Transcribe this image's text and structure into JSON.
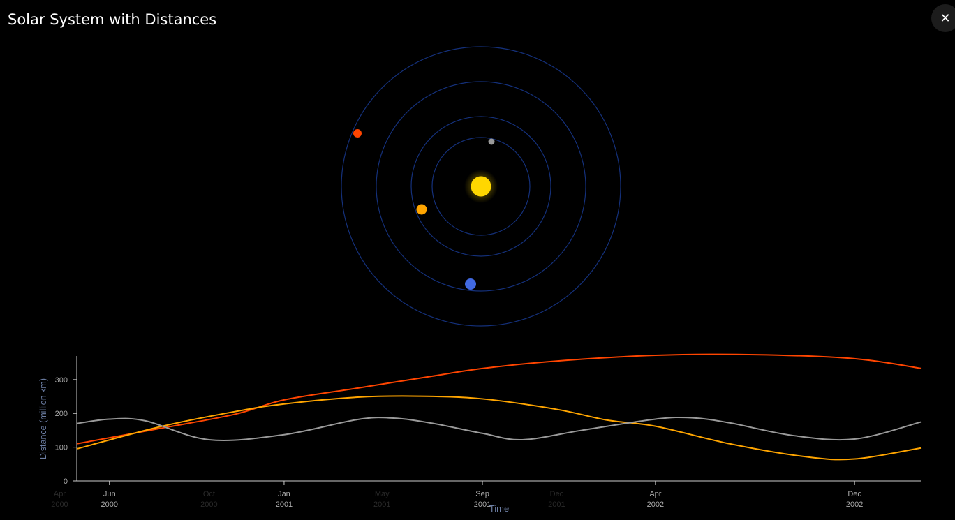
{
  "header": {
    "title": "Solar System with Distances",
    "close_label": "✕"
  },
  "colors": {
    "background": "#000000",
    "orbit": "#14307a",
    "sun": "#ffd700",
    "mercury": "#9a9a9a",
    "venus": "#ffa500",
    "earth": "#4169e1",
    "mars": "#ff4500",
    "axis": "#cccccc",
    "tick_text": "#aaaaaa",
    "faded_tick_text": "#2a2a2a"
  },
  "orrery": {
    "bodies": [
      {
        "name": "Sun",
        "color": "#ffd700"
      },
      {
        "name": "Mercury",
        "color": "#9a9a9a"
      },
      {
        "name": "Venus",
        "color": "#ffa500"
      },
      {
        "name": "Earth",
        "color": "#4169e1"
      },
      {
        "name": "Mars",
        "color": "#ff4500"
      }
    ]
  },
  "chart_data": {
    "type": "line",
    "xlabel": "Time",
    "ylabel": "Distance (million km)",
    "ylim": [
      0,
      370
    ],
    "yticks": [
      0,
      100,
      200,
      300
    ],
    "xlim": [
      "2000-04-22",
      "2003-02-21"
    ],
    "xticks": [
      {
        "date": "2000-06-01",
        "month": "Jun",
        "year": "2000"
      },
      {
        "date": "2001-01-01",
        "month": "Jan",
        "year": "2001"
      },
      {
        "date": "2001-09-01",
        "month": "Sep",
        "year": "2001"
      },
      {
        "date": "2002-04-01",
        "month": "Apr",
        "year": "2002"
      },
      {
        "date": "2002-12-01",
        "month": "Dec",
        "year": "2002"
      }
    ],
    "faded_xticks": [
      {
        "date": "2000-04-01",
        "month": "Apr",
        "year": "2000"
      },
      {
        "date": "2000-10-01",
        "month": "Oct",
        "year": "2000"
      },
      {
        "date": "2001-05-01",
        "month": "May",
        "year": "2001"
      },
      {
        "date": "2001-12-01",
        "month": "Dec",
        "year": "2001"
      }
    ],
    "grid": false,
    "legend": "none",
    "series": [
      {
        "color": "#ff4500",
        "points": [
          [
            "2000-04-22",
            110
          ],
          [
            "2000-08-01",
            155
          ],
          [
            "2000-11-01",
            197
          ],
          [
            "2001-01-01",
            240
          ],
          [
            "2001-04-01",
            275
          ],
          [
            "2001-07-01",
            310
          ],
          [
            "2001-09-01",
            333
          ],
          [
            "2001-12-01",
            355
          ],
          [
            "2002-04-01",
            372
          ],
          [
            "2002-08-01",
            374
          ],
          [
            "2002-12-01",
            362
          ],
          [
            "2003-02-21",
            333
          ]
        ]
      },
      {
        "color": "#ffa500",
        "points": [
          [
            "2000-04-22",
            95
          ],
          [
            "2000-08-01",
            160
          ],
          [
            "2000-11-01",
            205
          ],
          [
            "2001-01-01",
            228
          ],
          [
            "2001-04-01",
            248
          ],
          [
            "2001-06-15",
            251
          ],
          [
            "2001-09-01",
            243
          ],
          [
            "2001-12-01",
            212
          ],
          [
            "2002-02-01",
            180
          ],
          [
            "2002-04-01",
            162
          ],
          [
            "2002-07-01",
            110
          ],
          [
            "2002-10-01",
            72
          ],
          [
            "2002-12-01",
            65
          ],
          [
            "2003-02-21",
            98
          ]
        ]
      },
      {
        "color": "#9a9a9a",
        "points": [
          [
            "2000-04-22",
            170
          ],
          [
            "2000-06-01",
            183
          ],
          [
            "2000-07-15",
            178
          ],
          [
            "2000-10-01",
            122
          ],
          [
            "2001-01-01",
            137
          ],
          [
            "2001-04-01",
            182
          ],
          [
            "2001-05-15",
            186
          ],
          [
            "2001-07-01",
            171
          ],
          [
            "2001-09-01",
            141
          ],
          [
            "2001-10-20",
            122
          ],
          [
            "2002-01-01",
            150
          ],
          [
            "2002-04-01",
            183
          ],
          [
            "2002-05-15",
            187
          ],
          [
            "2002-07-01",
            172
          ],
          [
            "2002-09-15",
            135
          ],
          [
            "2002-12-01",
            124
          ],
          [
            "2003-02-21",
            175
          ]
        ]
      }
    ]
  }
}
